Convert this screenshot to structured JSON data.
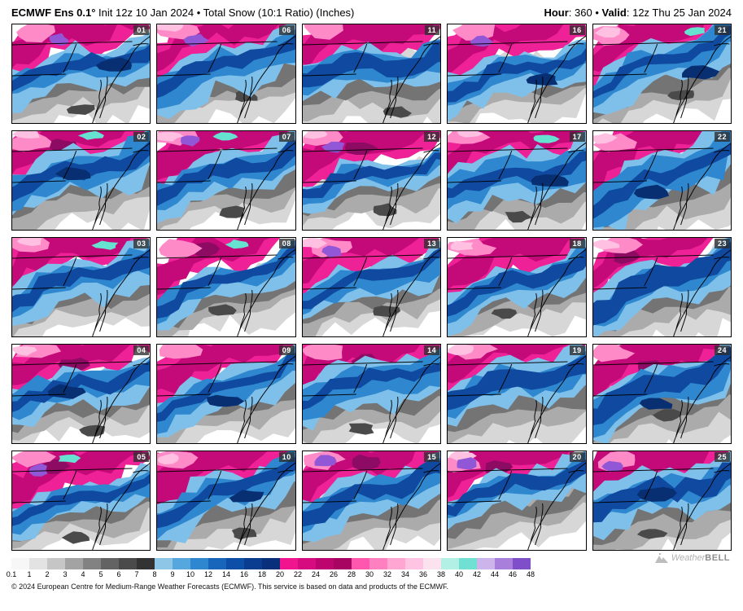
{
  "header": {
    "model": "ECMWF Ens 0.1°",
    "left_rest": " Init 12z 10 Jan 2024 • Total Snow (10:1 Ratio) (Inches)",
    "hour_label": "Hour",
    "hour_rest": ": 360 • ",
    "valid_label": "Valid",
    "valid_rest": ": 12z Thu 25 Jan 2024"
  },
  "panels": {
    "members": [
      "01",
      "06",
      "11",
      "16",
      "21",
      "02",
      "07",
      "12",
      "17",
      "22",
      "03",
      "08",
      "13",
      "18",
      "23",
      "04",
      "09",
      "14",
      "19",
      "24",
      "05",
      "10",
      "15",
      "20",
      "25"
    ]
  },
  "colorbar": {
    "labels": [
      "0.1",
      "1",
      "2",
      "3",
      "4",
      "5",
      "6",
      "7",
      "8",
      "9",
      "10",
      "12",
      "14",
      "16",
      "18",
      "20",
      "22",
      "24",
      "26",
      "28",
      "30",
      "32",
      "34",
      "36",
      "38",
      "40",
      "42",
      "44",
      "46",
      "48"
    ],
    "colors": [
      "#f7f7f7",
      "#e3e3e3",
      "#c6c6c6",
      "#a3a3a3",
      "#828282",
      "#636363",
      "#4a4a4a",
      "#333333",
      "#8ec6e8",
      "#55a7dd",
      "#2f88cf",
      "#1766bb",
      "#0d4fa6",
      "#0a3c90",
      "#092f7a",
      "#f0148e",
      "#d60b80",
      "#bd0570",
      "#a80462",
      "#ff57ad",
      "#ff80c0",
      "#ffa6d3",
      "#ffc4e1",
      "#fce1ef",
      "#b2f0e6",
      "#6fe0d2",
      "#cdb4ea",
      "#a87fdb",
      "#7f4fc9"
    ]
  },
  "footer": {
    "copyright": "© 2024 European Centre for Medium-Range Weather Forecasts (ECMWF). This service is based on data and products of the ECMWF."
  },
  "branding": {
    "logo_text_1": "Weather",
    "logo_text_2": "BELL"
  }
}
